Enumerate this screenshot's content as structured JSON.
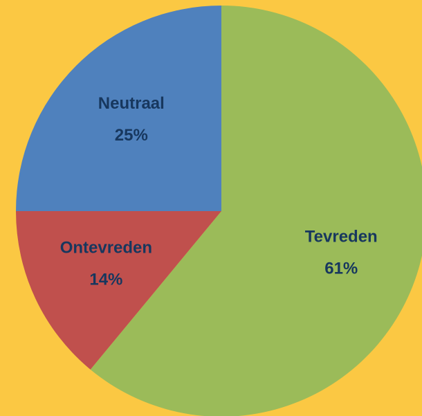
{
  "chart_data": {
    "type": "pie",
    "categories": [
      "Tevreden",
      "Ontevreden",
      "Neutraal"
    ],
    "values": [
      61,
      14,
      25
    ],
    "value_labels": [
      "61%",
      "14%",
      "25%"
    ],
    "colors": [
      "#9bbb59",
      "#c0504d",
      "#4f81bd"
    ]
  }
}
